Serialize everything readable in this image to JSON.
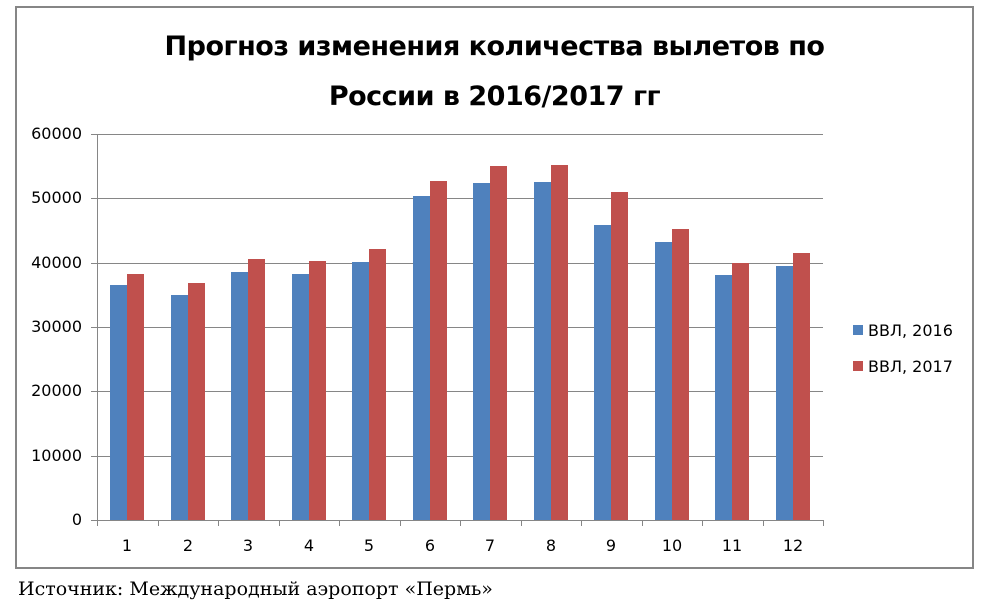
{
  "chart_data": {
    "type": "bar",
    "title": "Прогноз изменения количества вылетов по России в 2016/2017 гг",
    "title_lines": [
      "Прогноз изменения количества вылетов по",
      "России в 2016/2017 гг"
    ],
    "categories": [
      "1",
      "2",
      "3",
      "4",
      "5",
      "6",
      "7",
      "8",
      "9",
      "10",
      "11",
      "12"
    ],
    "series": [
      {
        "name": "ВВЛ, 2016",
        "color": "#4F81BD",
        "values": [
          36500,
          35000,
          38600,
          38300,
          40100,
          50300,
          52400,
          52500,
          45900,
          43200,
          38100,
          39500
        ]
      },
      {
        "name": "ВВЛ, 2017",
        "color": "#C0504D",
        "values": [
          38200,
          36800,
          40600,
          40300,
          42100,
          52700,
          55000,
          55200,
          51000,
          45200,
          40000,
          41500
        ]
      }
    ],
    "xlabel": "",
    "ylabel": "",
    "ylim": [
      0,
      60000
    ],
    "yticks": [
      "0",
      "10000",
      "20000",
      "30000",
      "40000",
      "50000",
      "60000"
    ],
    "grid": true,
    "legend_position": "right"
  },
  "source_note": "Источник: Международный аэропорт «Пермь»"
}
